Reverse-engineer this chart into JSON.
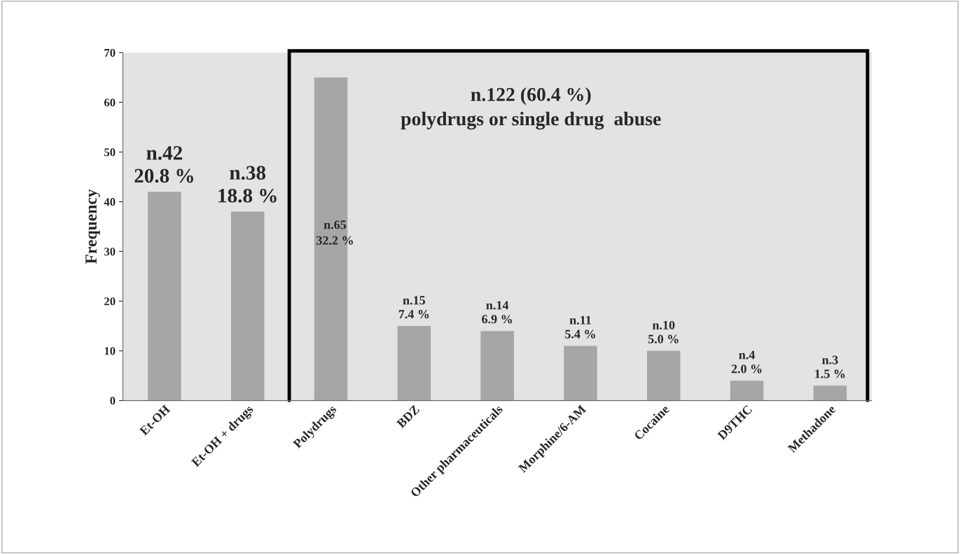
{
  "chart_data": {
    "type": "bar",
    "ylabel": "Frequency",
    "categories": [
      "Et-OH",
      "Et-OH + drugs",
      "Polydrugs",
      "BDZ",
      "Other pharmaceuticals",
      "Morphine/6-AM",
      "Cocaine",
      "D9THC",
      "Methadone"
    ],
    "values": [
      42,
      38,
      65,
      15,
      14,
      11,
      10,
      4,
      3
    ],
    "value_labels": [
      "n.42",
      "n.38",
      "n.65",
      "n.15",
      "n.14",
      "n.11",
      "n.10",
      "n.4",
      "n.3"
    ],
    "color": "#a6a6a6",
    "ylim": [
      0,
      70
    ],
    "yticks": [
      0,
      10,
      20,
      30,
      40,
      50,
      60,
      70
    ],
    "annotations": [
      "n.122 (60.4 %)\npolydrugs or single drug  abuse",
      {
        "text": "20.8 %",
        "x": "Et-OH",
        "y": 42
      },
      {
        "text": "18.8 %",
        "x": "Et-OH + drugs",
        "y": 38
      },
      {
        "text": "32.2 %",
        "x": "Polydrugs",
        "y": 32
      },
      {
        "text": "7.4 %",
        "x": "BDZ",
        "y": 15
      },
      {
        "text": "6.9 %",
        "x": "Other pharmaceuticals",
        "y": 14
      },
      {
        "text": "5.4 %",
        "x": "Morphine/6-AM",
        "y": 11
      },
      {
        "text": "5.0 %",
        "x": "Cocaine",
        "y": 10
      },
      {
        "text": "2.0 %",
        "x": "D9THC",
        "y": 4
      },
      {
        "text": "1.5 %",
        "x": "Methadone",
        "y": 3
      }
    ],
    "grid": false
  }
}
